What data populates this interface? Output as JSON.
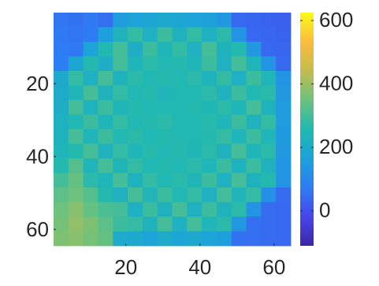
{
  "chart_data": {
    "type": "heatmap",
    "x": [
      2.5,
      6.5,
      10.5,
      14.5,
      18.5,
      22.5,
      26.5,
      30.5,
      34.5,
      38.5,
      42.5,
      46.5,
      50.5,
      54.5,
      58.5,
      62.5
    ],
    "y": [
      2.5,
      6.5,
      10.5,
      14.5,
      18.5,
      22.5,
      26.5,
      30.5,
      34.5,
      38.5,
      42.5,
      46.5,
      50.5,
      54.5,
      58.5,
      62.5
    ],
    "values": [
      [
        60,
        55,
        65,
        50,
        150,
        170,
        180,
        190,
        180,
        170,
        160,
        140,
        40,
        35,
        30,
        25
      ],
      [
        65,
        60,
        70,
        160,
        230,
        280,
        220,
        290,
        230,
        280,
        220,
        270,
        130,
        40,
        35,
        30
      ],
      [
        70,
        65,
        170,
        250,
        300,
        210,
        290,
        240,
        280,
        220,
        300,
        230,
        260,
        140,
        40,
        35
      ],
      [
        75,
        180,
        260,
        210,
        300,
        240,
        270,
        250,
        260,
        240,
        290,
        220,
        300,
        240,
        130,
        40
      ],
      [
        190,
        280,
        220,
        300,
        230,
        270,
        250,
        260,
        250,
        270,
        230,
        280,
        220,
        290,
        240,
        130
      ],
      [
        200,
        240,
        300,
        230,
        280,
        250,
        260,
        240,
        255,
        250,
        270,
        230,
        290,
        250,
        270,
        140
      ],
      [
        210,
        300,
        230,
        290,
        240,
        260,
        250,
        255,
        250,
        260,
        245,
        270,
        240,
        300,
        230,
        150
      ],
      [
        220,
        250,
        290,
        240,
        280,
        250,
        260,
        270,
        250,
        255,
        265,
        240,
        290,
        230,
        280,
        150
      ],
      [
        230,
        300,
        240,
        290,
        250,
        270,
        250,
        260,
        255,
        250,
        260,
        280,
        240,
        290,
        240,
        145
      ],
      [
        240,
        260,
        300,
        230,
        280,
        240,
        265,
        250,
        260,
        245,
        270,
        230,
        300,
        240,
        270,
        140
      ],
      [
        260,
        320,
        240,
        300,
        240,
        280,
        250,
        260,
        250,
        270,
        240,
        290,
        230,
        290,
        230,
        135
      ],
      [
        300,
        340,
        270,
        240,
        300,
        230,
        280,
        250,
        270,
        240,
        290,
        220,
        300,
        230,
        260,
        130
      ],
      [
        330,
        350,
        320,
        260,
        220,
        300,
        240,
        290,
        250,
        280,
        220,
        300,
        240,
        280,
        120,
        45
      ],
      [
        350,
        380,
        340,
        310,
        300,
        220,
        290,
        230,
        300,
        220,
        290,
        230,
        270,
        130,
        45,
        40
      ],
      [
        360,
        390,
        370,
        330,
        290,
        280,
        230,
        300,
        220,
        300,
        240,
        270,
        140,
        50,
        45,
        40
      ],
      [
        370,
        380,
        360,
        340,
        200,
        190,
        170,
        200,
        180,
        190,
        170,
        160,
        55,
        50,
        45,
        40
      ]
    ],
    "xlim": [
      0.5,
      64.5
    ],
    "ylim": [
      0.5,
      64.5
    ],
    "y_reversed": true,
    "xticks": [
      20,
      40,
      60
    ],
    "yticks": [
      20,
      40,
      60
    ],
    "clim": [
      -110,
      625
    ],
    "cticks": [
      0,
      200,
      400,
      600
    ],
    "colormap": [
      "#3e26a8",
      "#4745ea",
      "#2d7ef3",
      "#1ca2d9",
      "#21b9b0",
      "#6cc27d",
      "#c2bd4f",
      "#fdbc3c",
      "#f9fb15"
    ]
  }
}
